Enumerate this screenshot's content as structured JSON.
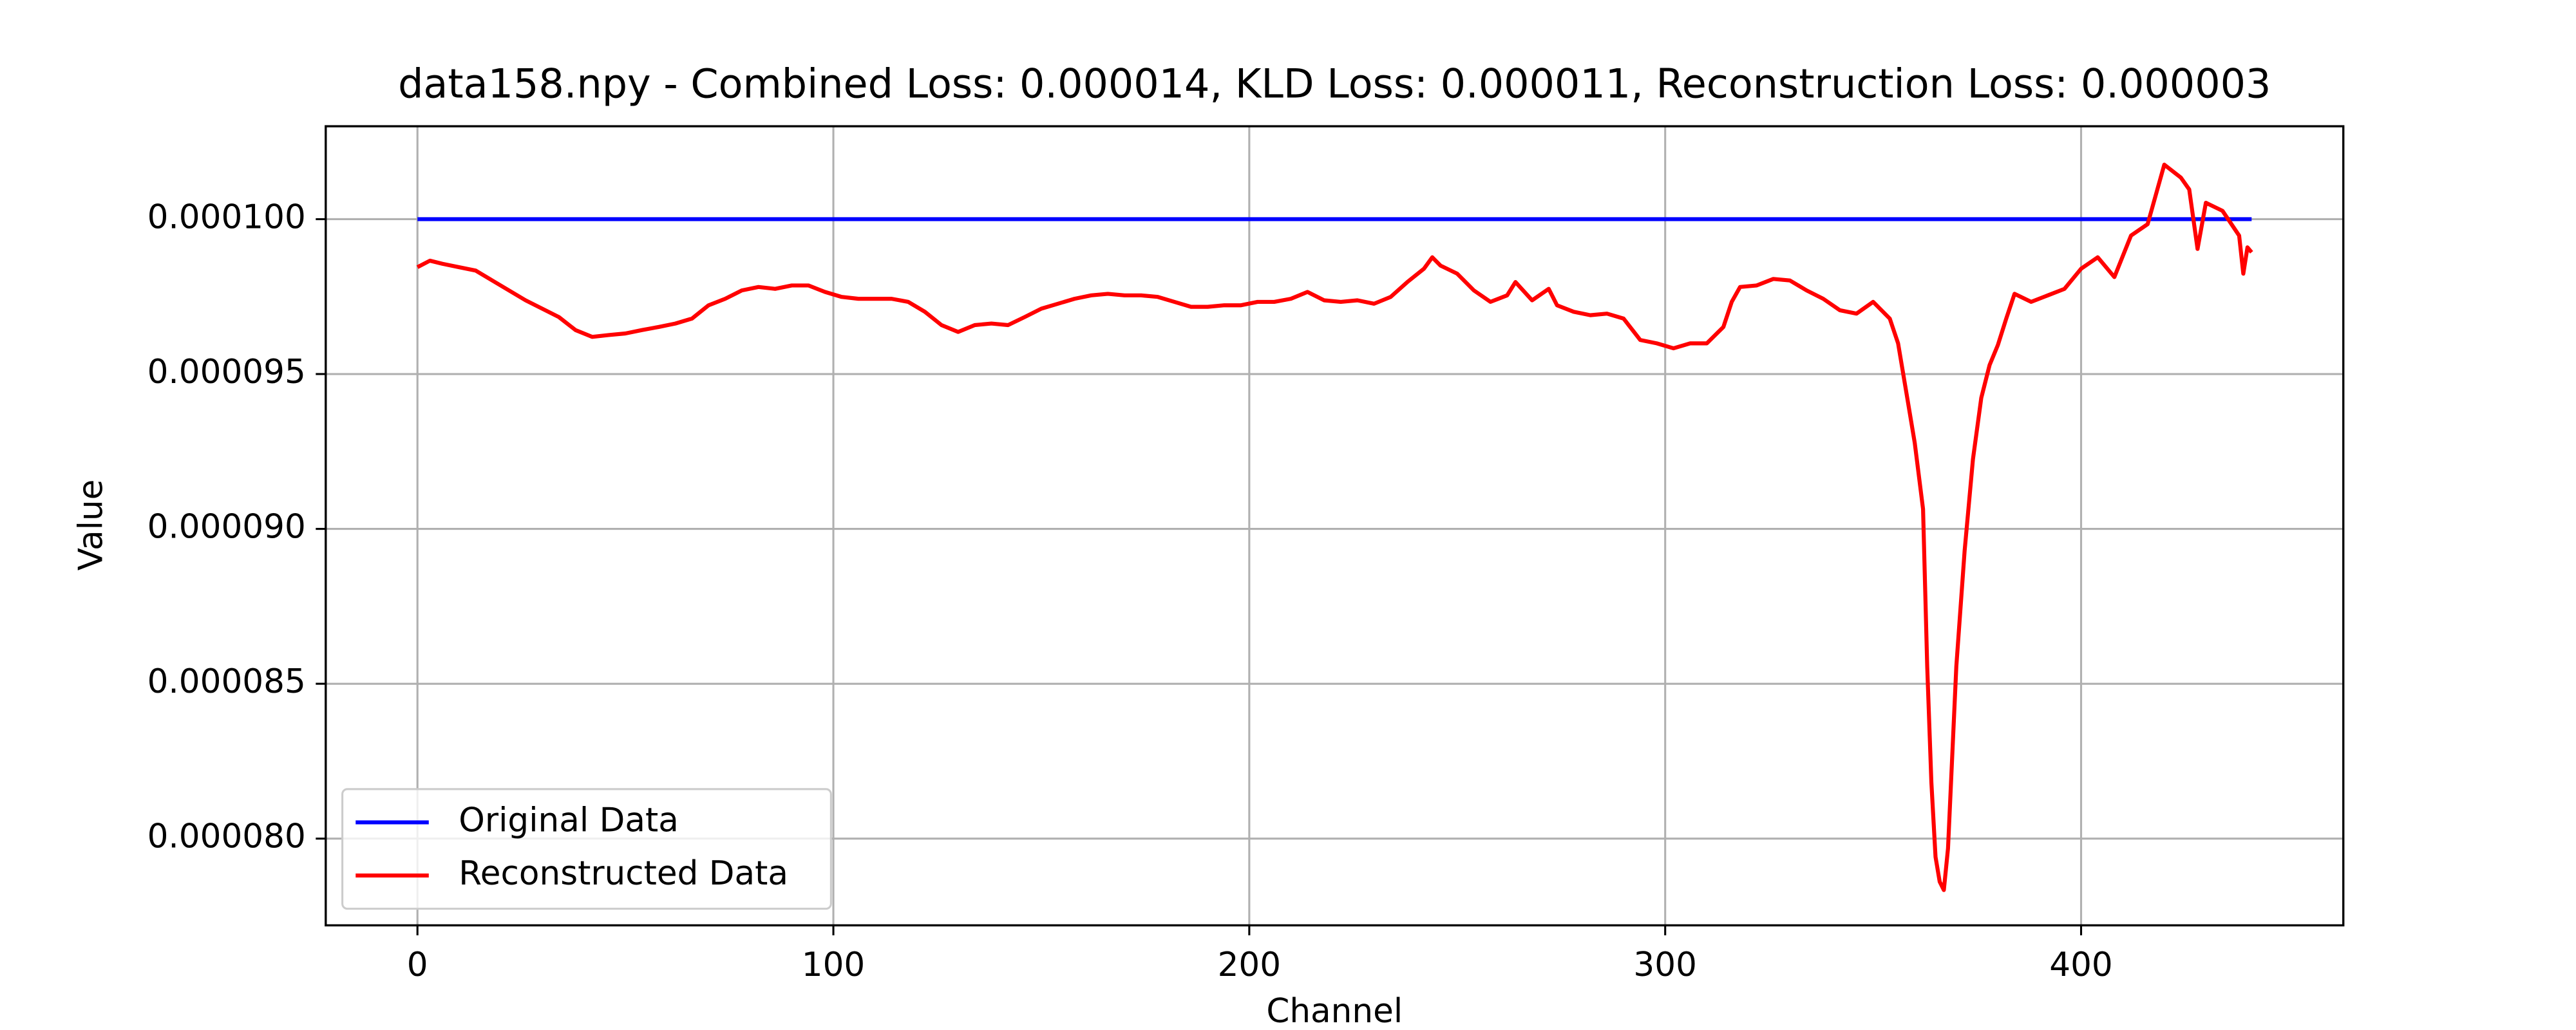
{
  "chart_data": {
    "type": "line",
    "title": "data158.npy - Combined Loss: 0.000014, KLD Loss: 0.000011, Reconstruction Loss: 0.000003",
    "xlabel": "Channel",
    "ylabel": "Value",
    "x": [
      0,
      3,
      6,
      10,
      14,
      18,
      22,
      26,
      30,
      34,
      38,
      42,
      46,
      50,
      54,
      58,
      62,
      66,
      70,
      74,
      78,
      82,
      86,
      90,
      94,
      98,
      102,
      106,
      110,
      114,
      118,
      122,
      126,
      130,
      134,
      138,
      142,
      146,
      150,
      154,
      158,
      162,
      166,
      170,
      174,
      178,
      182,
      186,
      190,
      194,
      198,
      202,
      206,
      210,
      214,
      218,
      222,
      226,
      230,
      234,
      238,
      242,
      244,
      246,
      250,
      254,
      258,
      262,
      264,
      268,
      272,
      274,
      278,
      282,
      286,
      290,
      294,
      298,
      302,
      306,
      310,
      314,
      316,
      318,
      322,
      326,
      330,
      334,
      338,
      342,
      346,
      350,
      354,
      356,
      358,
      360,
      362,
      363,
      364,
      365,
      366,
      367,
      368,
      370,
      372,
      374,
      376,
      378,
      380,
      382,
      384,
      388,
      392,
      396,
      400,
      404,
      408,
      412,
      416,
      420,
      424,
      426,
      428,
      430,
      434,
      438,
      439,
      440,
      441
    ],
    "series": [
      {
        "name": "Original Data",
        "color": "#0000ff",
        "values": [
          0.0001,
          0.0001,
          0.0001,
          0.0001,
          0.0001,
          0.0001,
          0.0001,
          0.0001,
          0.0001,
          0.0001,
          0.0001,
          0.0001,
          0.0001,
          0.0001,
          0.0001,
          0.0001,
          0.0001,
          0.0001,
          0.0001,
          0.0001,
          0.0001,
          0.0001,
          0.0001,
          0.0001,
          0.0001,
          0.0001,
          0.0001,
          0.0001,
          0.0001,
          0.0001,
          0.0001,
          0.0001,
          0.0001,
          0.0001,
          0.0001,
          0.0001,
          0.0001,
          0.0001,
          0.0001,
          0.0001,
          0.0001,
          0.0001,
          0.0001,
          0.0001,
          0.0001,
          0.0001,
          0.0001,
          0.0001,
          0.0001,
          0.0001,
          0.0001,
          0.0001,
          0.0001,
          0.0001,
          0.0001,
          0.0001,
          0.0001,
          0.0001,
          0.0001,
          0.0001,
          0.0001,
          0.0001,
          0.0001,
          0.0001,
          0.0001,
          0.0001,
          0.0001,
          0.0001,
          0.0001,
          0.0001,
          0.0001,
          0.0001,
          0.0001,
          0.0001,
          0.0001,
          0.0001,
          0.0001,
          0.0001,
          0.0001,
          0.0001,
          0.0001,
          0.0001,
          0.0001,
          0.0001,
          0.0001,
          0.0001,
          0.0001,
          0.0001,
          0.0001,
          0.0001,
          0.0001,
          0.0001,
          0.0001,
          0.0001,
          0.0001,
          0.0001,
          0.0001,
          0.0001,
          0.0001,
          0.0001,
          0.0001,
          0.0001,
          0.0001,
          0.0001,
          0.0001,
          0.0001,
          0.0001,
          0.0001,
          0.0001,
          0.0001,
          0.0001,
          0.0001,
          0.0001,
          0.0001,
          0.0001,
          0.0001,
          0.0001,
          0.0001,
          0.0001,
          0.0001,
          0.0001,
          0.0001,
          0.0001,
          0.0001,
          0.0001,
          0.0001,
          0.0001,
          0.0001,
          0.0001
        ]
      },
      {
        "name": "Reconstructed Data",
        "color": "#ff0000",
        "values": [
          9.845e-05,
          9.866e-05,
          9.856e-05,
          9.845e-05,
          9.834e-05,
          9.802e-05,
          9.77e-05,
          9.738e-05,
          9.711e-05,
          9.684e-05,
          9.642e-05,
          9.62e-05,
          9.626e-05,
          9.631e-05,
          9.642e-05,
          9.652e-05,
          9.663e-05,
          9.679e-05,
          9.722e-05,
          9.743e-05,
          9.77e-05,
          9.781e-05,
          9.775e-05,
          9.786e-05,
          9.786e-05,
          9.765e-05,
          9.749e-05,
          9.743e-05,
          9.743e-05,
          9.743e-05,
          9.733e-05,
          9.701e-05,
          9.658e-05,
          9.636e-05,
          9.658e-05,
          9.663e-05,
          9.658e-05,
          9.684e-05,
          9.711e-05,
          9.727e-05,
          9.743e-05,
          9.754e-05,
          9.759e-05,
          9.754e-05,
          9.754e-05,
          9.749e-05,
          9.733e-05,
          9.717e-05,
          9.717e-05,
          9.722e-05,
          9.722e-05,
          9.733e-05,
          9.733e-05,
          9.743e-05,
          9.765e-05,
          9.738e-05,
          9.733e-05,
          9.738e-05,
          9.727e-05,
          9.749e-05,
          9.797e-05,
          9.84e-05,
          9.877e-05,
          9.85e-05,
          9.824e-05,
          9.77e-05,
          9.733e-05,
          9.754e-05,
          9.797e-05,
          9.738e-05,
          9.775e-05,
          9.722e-05,
          9.701e-05,
          9.69e-05,
          9.695e-05,
          9.679e-05,
          9.61e-05,
          9.599e-05,
          9.583e-05,
          9.599e-05,
          9.599e-05,
          9.652e-05,
          9.733e-05,
          9.781e-05,
          9.786e-05,
          9.807e-05,
          9.802e-05,
          9.77e-05,
          9.743e-05,
          9.706e-05,
          9.695e-05,
          9.733e-05,
          9.679e-05,
          9.599e-05,
          9.439e-05,
          9.278e-05,
          9.064e-05,
          8.556e-05,
          8.182e-05,
          7.941e-05,
          7.861e-05,
          7.834e-05,
          7.968e-05,
          8.556e-05,
          8.93e-05,
          9.225e-05,
          9.423e-05,
          9.529e-05,
          9.594e-05,
          9.679e-05,
          9.759e-05,
          9.733e-05,
          9.754e-05,
          9.775e-05,
          9.84e-05,
          9.877e-05,
          9.813e-05,
          9.947e-05,
          9.984e-05,
          0.00010176,
          0.00010134,
          0.00010096,
          9.904e-05,
          0.00010053,
          0.00010027,
          9.947e-05,
          9.824e-05,
          9.909e-05,
          9.893e-05
        ]
      }
    ],
    "xlim": [
      -22.05,
      463.05
    ],
    "xticks": [
      0,
      100,
      200,
      300,
      400
    ],
    "ylim": [
      7.72e-05,
      0.000103
    ],
    "yticks": [
      {
        "value": 8e-05,
        "label": "0.000080"
      },
      {
        "value": 8.5e-05,
        "label": "0.000085"
      },
      {
        "value": 9e-05,
        "label": "0.000090"
      },
      {
        "value": 9.5e-05,
        "label": "0.000095"
      },
      {
        "value": 0.0001,
        "label": "0.000100"
      }
    ],
    "grid": true,
    "legend": "lower left"
  }
}
